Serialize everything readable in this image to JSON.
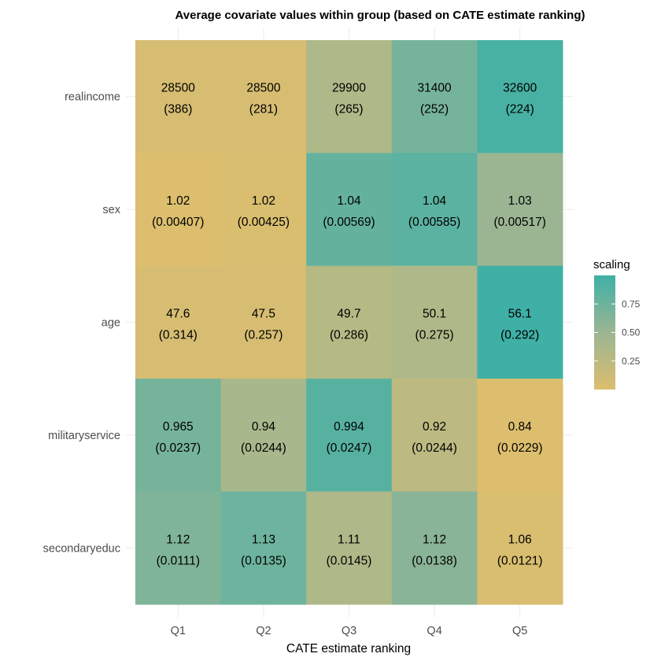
{
  "chart_data": {
    "type": "heatmap",
    "title": "Average covariate values within group (based on CATE estimate ranking)",
    "xlabel": "CATE estimate ranking",
    "ylabel": "",
    "x_categories": [
      "Q1",
      "Q2",
      "Q3",
      "Q4",
      "Q5"
    ],
    "y_categories": [
      "realincome",
      "sex",
      "age",
      "militaryservice",
      "secondaryeduc"
    ],
    "cells": [
      [
        {
          "value": "28500",
          "se": "(386)",
          "scaling": 0.05
        },
        {
          "value": "28500",
          "se": "(281)",
          "scaling": 0.05
        },
        {
          "value": "29900",
          "se": "(265)",
          "scaling": 0.35
        },
        {
          "value": "31400",
          "se": "(252)",
          "scaling": 0.7
        },
        {
          "value": "32600",
          "se": "(224)",
          "scaling": 0.95
        }
      ],
      [
        {
          "value": "1.02",
          "se": "(0.00407)",
          "scaling": 0.0
        },
        {
          "value": "1.02",
          "se": "(0.00425)",
          "scaling": 0.02
        },
        {
          "value": "1.04",
          "se": "(0.00569)",
          "scaling": 0.8
        },
        {
          "value": "1.04",
          "se": "(0.00585)",
          "scaling": 0.85
        },
        {
          "value": "1.03",
          "se": "(0.00517)",
          "scaling": 0.5
        }
      ],
      [
        {
          "value": "47.6",
          "se": "(0.314)",
          "scaling": 0.05
        },
        {
          "value": "47.5",
          "se": "(0.257)",
          "scaling": 0.05
        },
        {
          "value": "49.7",
          "se": "(0.286)",
          "scaling": 0.3
        },
        {
          "value": "50.1",
          "se": "(0.275)",
          "scaling": 0.35
        },
        {
          "value": "56.1",
          "se": "(0.292)",
          "scaling": 1.0
        }
      ],
      [
        {
          "value": "0.965",
          "se": "(0.0237)",
          "scaling": 0.7
        },
        {
          "value": "0.94",
          "se": "(0.0244)",
          "scaling": 0.4
        },
        {
          "value": "0.994",
          "se": "(0.0247)",
          "scaling": 0.87
        },
        {
          "value": "0.92",
          "se": "(0.0244)",
          "scaling": 0.25
        },
        {
          "value": "0.84",
          "se": "(0.0229)",
          "scaling": 0.0
        }
      ],
      [
        {
          "value": "1.12",
          "se": "(0.0111)",
          "scaling": 0.65
        },
        {
          "value": "1.13",
          "se": "(0.0135)",
          "scaling": 0.75
        },
        {
          "value": "1.11",
          "se": "(0.0145)",
          "scaling": 0.35
        },
        {
          "value": "1.12",
          "se": "(0.0138)",
          "scaling": 0.6
        },
        {
          "value": "1.06",
          "se": "(0.0121)",
          "scaling": 0.02
        }
      ]
    ],
    "legend": {
      "title": "scaling",
      "placement": "right",
      "range": [
        0,
        1
      ],
      "ticks": [
        {
          "value": 0.25,
          "label": "0.25"
        },
        {
          "value": 0.5,
          "label": "0.50"
        },
        {
          "value": 0.75,
          "label": "0.75"
        }
      ],
      "low_color": "#dcbe6e",
      "mid_color": "#9bb593",
      "high_color": "#3fb0a6"
    },
    "grid": true
  }
}
